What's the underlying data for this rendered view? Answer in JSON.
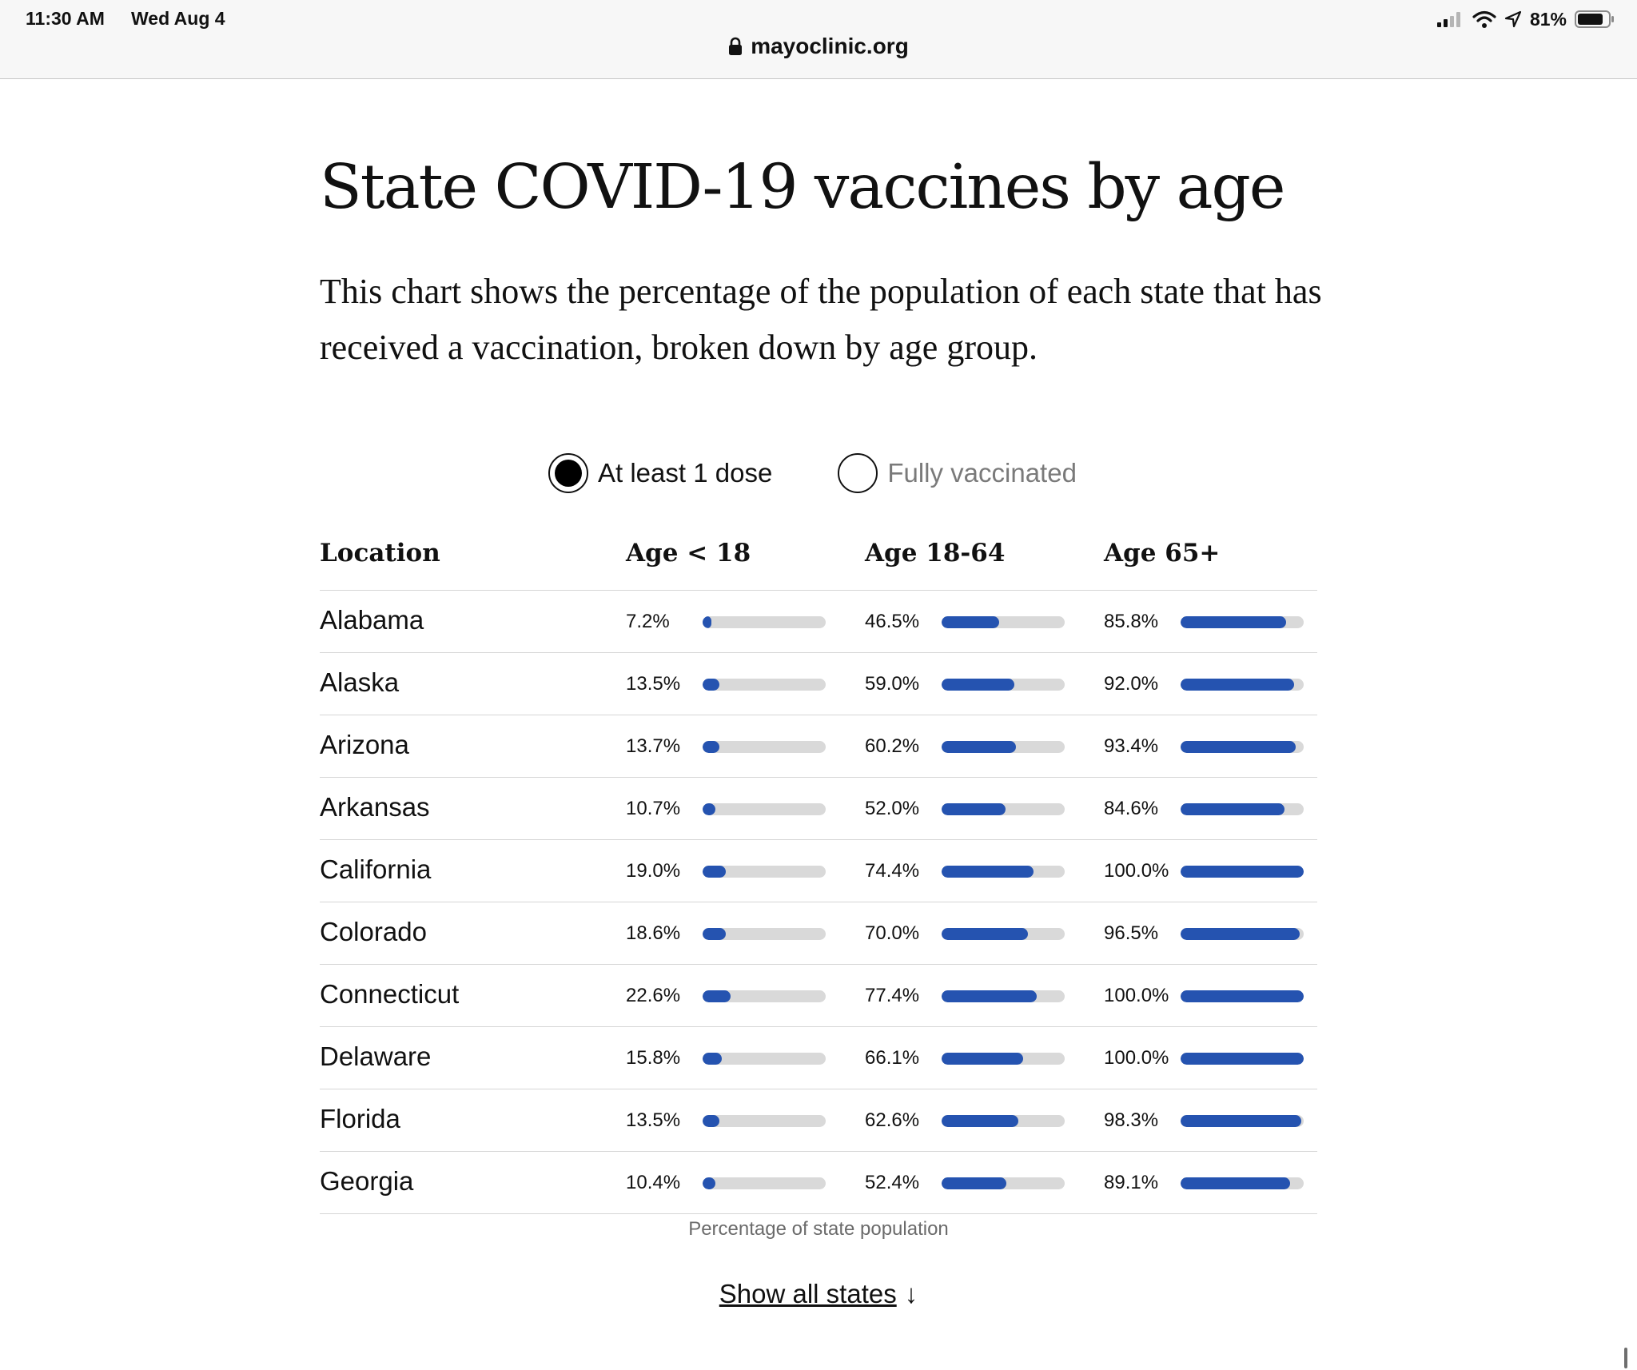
{
  "status_bar": {
    "time": "11:30 AM",
    "date": "Wed Aug 4",
    "battery_percent": "81%",
    "icons": [
      "cellular-signal-icon",
      "wifi-icon",
      "location-arrow-icon",
      "battery-icon"
    ]
  },
  "browser": {
    "url": "mayoclinic.org",
    "lock_icon": "lock-icon"
  },
  "article": {
    "title": "State COVID-19 vaccines by age",
    "description": "This chart shows the percentage of the population of each state that has received a vaccination, broken down by age group."
  },
  "toggles": [
    {
      "label": "At least 1 dose",
      "selected": true
    },
    {
      "label": "Fully vaccinated",
      "selected": false
    }
  ],
  "table": {
    "headers": [
      "Location",
      "Age < 18",
      "Age 18-64",
      "Age 65+"
    ],
    "bar_color": "#2553b0",
    "track_color": "#d9d9d9",
    "rows": [
      {
        "location": "Alabama",
        "values": [
          "7.2%",
          "46.5%",
          "85.8%"
        ]
      },
      {
        "location": "Alaska",
        "values": [
          "13.5%",
          "59.0%",
          "92.0%"
        ]
      },
      {
        "location": "Arizona",
        "values": [
          "13.7%",
          "60.2%",
          "93.4%"
        ]
      },
      {
        "location": "Arkansas",
        "values": [
          "10.7%",
          "52.0%",
          "84.6%"
        ]
      },
      {
        "location": "California",
        "values": [
          "19.0%",
          "74.4%",
          "100.0%"
        ]
      },
      {
        "location": "Colorado",
        "values": [
          "18.6%",
          "70.0%",
          "96.5%"
        ]
      },
      {
        "location": "Connecticut",
        "values": [
          "22.6%",
          "77.4%",
          "100.0%"
        ]
      },
      {
        "location": "Delaware",
        "values": [
          "15.8%",
          "66.1%",
          "100.0%"
        ]
      },
      {
        "location": "Florida",
        "values": [
          "13.5%",
          "62.6%",
          "98.3%"
        ]
      },
      {
        "location": "Georgia",
        "values": [
          "10.4%",
          "52.4%",
          "89.1%"
        ]
      }
    ]
  },
  "footnote": "Percentage of state population",
  "show_all": {
    "label": "Show all states",
    "arrow": "↓"
  }
}
